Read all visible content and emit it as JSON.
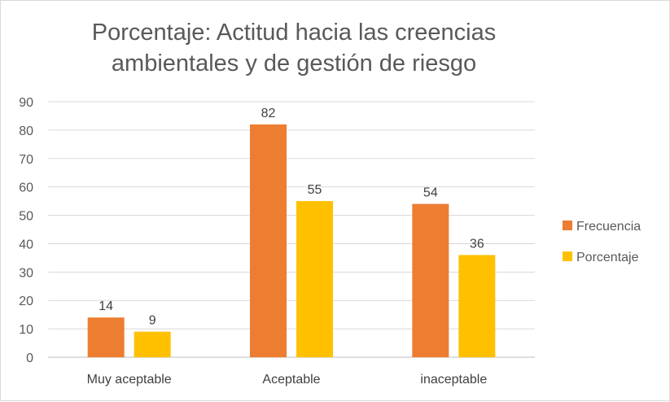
{
  "chart_data": {
    "type": "bar",
    "title_lines": [
      "Porcentaje: Actitud hacia las creencias",
      "ambientales y de gestión de riesgo"
    ],
    "categories": [
      "Muy aceptable",
      "Aceptable",
      "inaceptable"
    ],
    "series": [
      {
        "name": "Frecuencia",
        "values": [
          14,
          82,
          54
        ],
        "color": "#ED7D31"
      },
      {
        "name": "Porcentaje",
        "values": [
          9,
          55,
          36
        ],
        "color": "#FFC000"
      }
    ],
    "ylim": [
      0,
      90
    ],
    "yticks": [
      "0",
      "10",
      "20",
      "30",
      "40",
      "50",
      "60",
      "70",
      "80",
      "90"
    ],
    "grid": true,
    "legend_position": "right",
    "xlabel": "",
    "ylabel": ""
  }
}
